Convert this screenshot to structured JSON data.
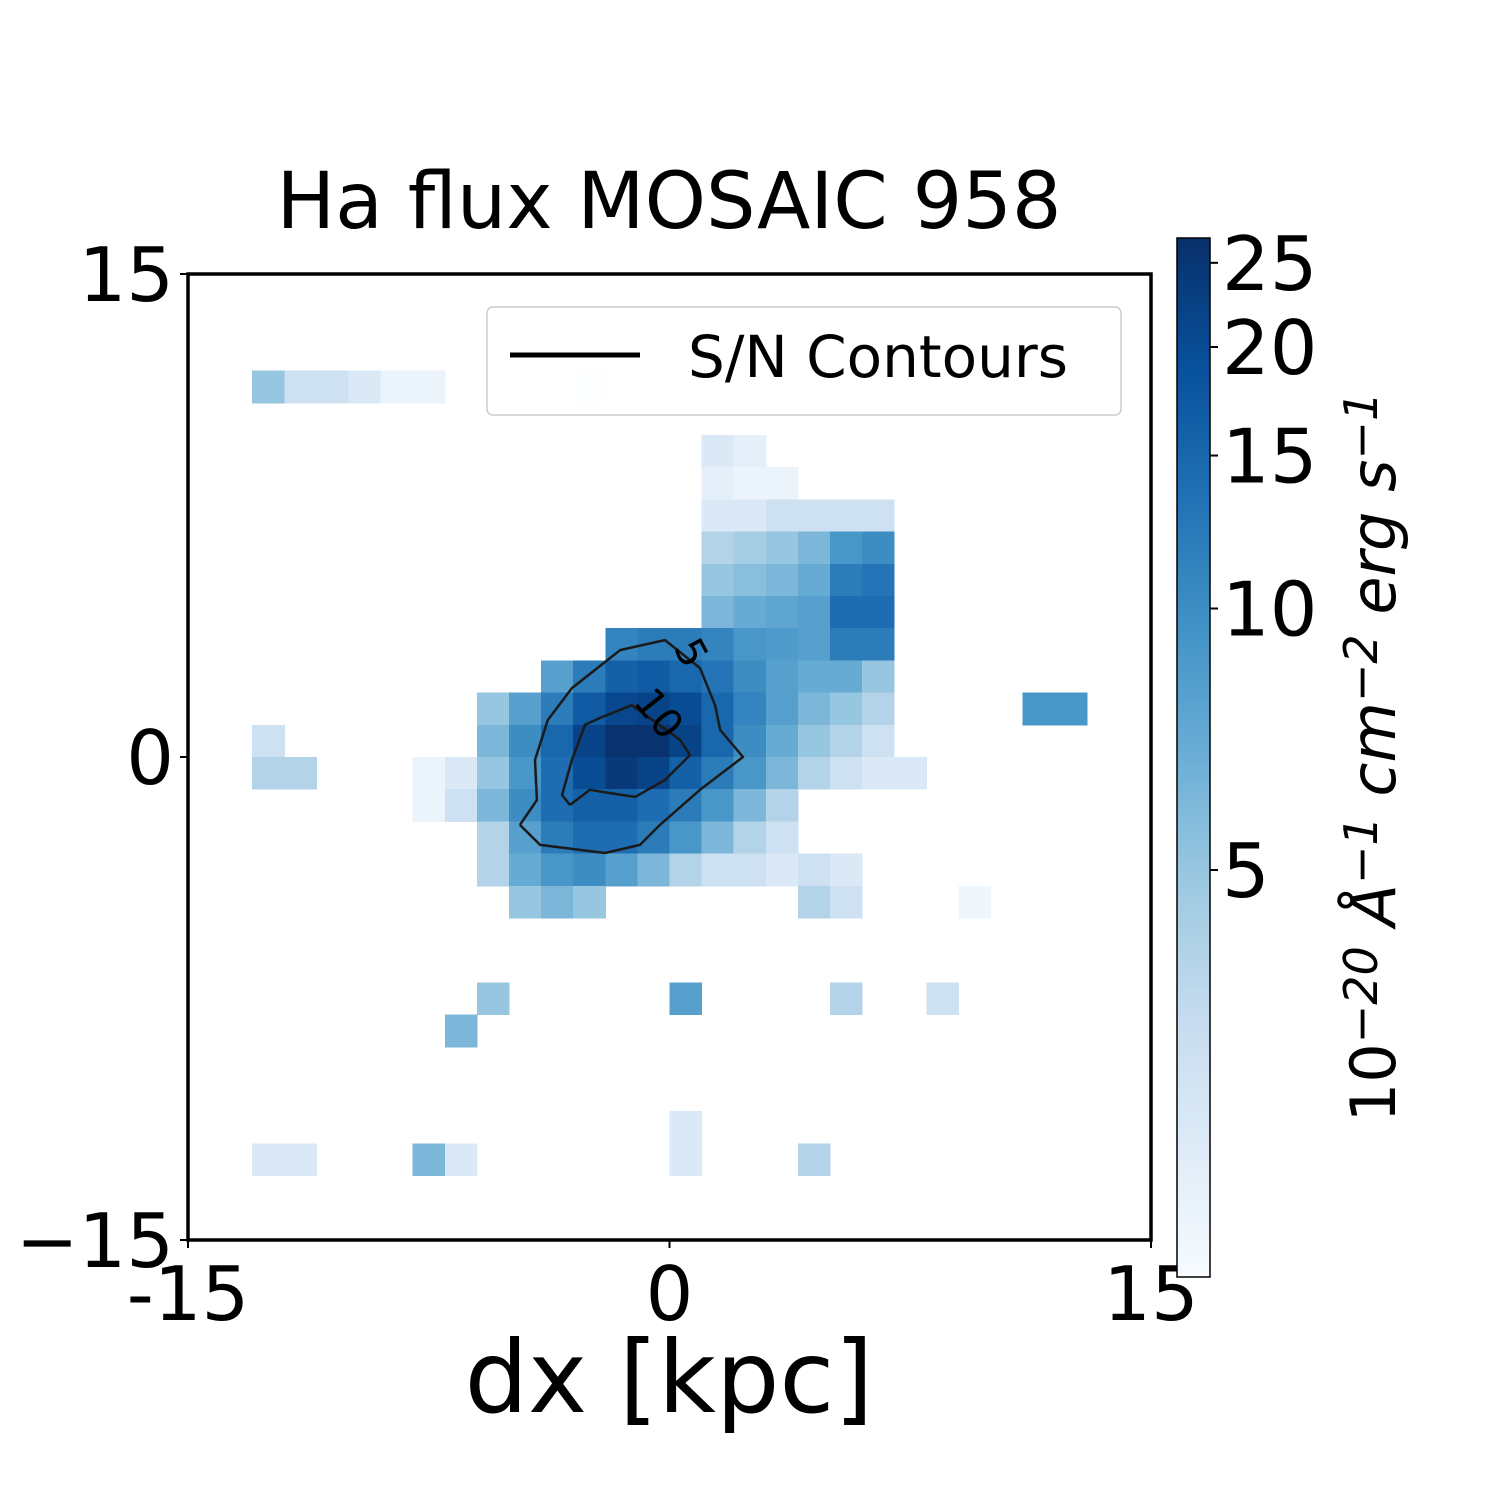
{
  "chart_data": {
    "type": "heatmap",
    "title": "Ha flux MOSAIC 958",
    "x_label": "dx [kpc]",
    "xlim": [
      -15,
      15
    ],
    "ylim": [
      -15,
      15
    ],
    "xticks": [
      -15,
      0,
      15
    ],
    "yticks": [
      {
        "value": -15,
        "label": "−15"
      },
      0,
      15
    ],
    "colormap": [
      "#f7fbff",
      "#deebf7",
      "#c6dbef",
      "#9ecae1",
      "#6baed6",
      "#4292c6",
      "#2171b5",
      "#08519c",
      "#08306b"
    ],
    "color_scale": "log",
    "clim": [
      1.7,
      26.7
    ],
    "cticks": [
      5,
      10,
      15,
      20,
      25
    ],
    "colorbar_label": [
      "10",
      "−20",
      " Å",
      "−1",
      " cm",
      "−2",
      " erg s",
      "−1"
    ],
    "rows": [
      {
        "y": 11.5,
        "x": [
          -12.5,
          -11.5,
          -10.5,
          -9.5,
          -8.5,
          -7.5,
          -2.5
        ],
        "values": [
          5,
          3,
          3,
          2.5,
          2,
          2,
          1.8
        ]
      },
      {
        "y": 9.5,
        "x": [
          1.5,
          2.5
        ],
        "values": [
          2.5,
          2.2
        ]
      },
      {
        "y": 8.5,
        "x": [
          1.5,
          2.5,
          3.5
        ],
        "values": [
          2.2,
          2,
          2
        ]
      },
      {
        "y": 7.5,
        "x": [
          1.5,
          2.5,
          3.5,
          4.5,
          5.5,
          6.5
        ],
        "values": [
          2.5,
          2.5,
          3,
          3,
          3,
          3
        ]
      },
      {
        "y": 6.5,
        "x": [
          1.5,
          2.5,
          3.5,
          4.5,
          5.5,
          6.5
        ],
        "values": [
          4,
          4.5,
          5,
          6,
          9,
          10
        ]
      },
      {
        "y": 5.5,
        "x": [
          1.5,
          2.5,
          3.5,
          4.5,
          5.5,
          6.5
        ],
        "values": [
          5,
          5.5,
          6,
          7,
          12,
          13
        ]
      },
      {
        "y": 4.5,
        "x": [
          1.5,
          2.5,
          3.5,
          4.5,
          5.5,
          6.5
        ],
        "values": [
          6,
          7,
          7.5,
          8,
          14,
          14
        ]
      },
      {
        "y": 3.5,
        "x": [
          -1.5,
          -0.5,
          0.5,
          1.5,
          2.5,
          3.5,
          4.5,
          5.5,
          6.5
        ],
        "values": [
          11,
          12,
          12,
          11,
          9,
          8.5,
          8,
          12,
          12
        ]
      },
      {
        "y": 2.5,
        "x": [
          -3.5,
          -2.5,
          -1.5,
          -0.5,
          0.5,
          1.5,
          2.5,
          3.5,
          4.5,
          5.5,
          6.5
        ],
        "values": [
          8,
          12,
          16,
          17,
          15,
          13,
          10,
          8,
          7,
          7,
          5
        ]
      },
      {
        "y": 1.5,
        "x": [
          -5.5,
          -4.5,
          -3.5,
          -2.5,
          -1.5,
          -0.5,
          0.5,
          1.5,
          2.5,
          3.5,
          4.5,
          5.5,
          6.5,
          11.5,
          12.5
        ],
        "values": [
          5,
          8,
          12,
          17,
          21,
          22,
          20,
          15,
          11,
          8,
          6,
          5,
          4,
          9,
          9
        ]
      },
      {
        "y": 0.5,
        "x": [
          -12.5,
          -5.5,
          -4.5,
          -3.5,
          -2.5,
          -1.5,
          -0.5,
          0.5,
          1.5,
          2.5,
          3.5,
          4.5,
          5.5,
          6.5
        ],
        "values": [
          3,
          6,
          10,
          15,
          22,
          26,
          26,
          22,
          15,
          10,
          7,
          5,
          4,
          3
        ]
      },
      {
        "y": -0.5,
        "x": [
          -12.5,
          -11.5,
          -7.5,
          -6.5,
          -5.5,
          -4.5,
          -3.5,
          -2.5,
          -1.5,
          -0.5,
          0.5,
          1.5,
          2.5,
          3.5,
          4.5,
          5.5,
          6.5,
          7.5
        ],
        "values": [
          4,
          4,
          2,
          2.5,
          5,
          9,
          14,
          20,
          24,
          22,
          16,
          12,
          9,
          6,
          4,
          3,
          2.5,
          2.5
        ]
      },
      {
        "y": -1.5,
        "x": [
          -7.5,
          -6.5,
          -5.5,
          -4.5,
          -3.5,
          -2.5,
          -1.5,
          -0.5,
          0.5,
          1.5,
          2.5,
          3.5
        ],
        "values": [
          2,
          3,
          6,
          10,
          14,
          16,
          16,
          14,
          12,
          9,
          6,
          4
        ]
      },
      {
        "y": -2.5,
        "x": [
          -5.5,
          -4.5,
          -3.5,
          -2.5,
          -1.5,
          -0.5,
          0.5,
          1.5,
          2.5,
          3.5
        ],
        "values": [
          4,
          8,
          12,
          14,
          14,
          12,
          9,
          6,
          4,
          3
        ]
      },
      {
        "y": -3.5,
        "x": [
          -5.5,
          -4.5,
          -3.5,
          -2.5,
          -1.5,
          -0.5,
          0.5,
          1.5,
          2.5,
          3.5,
          4.5,
          5.5
        ],
        "values": [
          4,
          7,
          9,
          10,
          8,
          6,
          4,
          3,
          3,
          2.5,
          3,
          2.5
        ]
      },
      {
        "y": -4.5,
        "x": [
          -4.5,
          -3.5,
          -2.5,
          4.5,
          5.5,
          9.5
        ],
        "values": [
          5,
          6,
          5,
          4,
          3,
          1.9
        ]
      },
      {
        "y": -7.5,
        "x": [
          -5.5,
          0.5,
          5.5,
          8.5
        ],
        "values": [
          5,
          8,
          4,
          3
        ]
      },
      {
        "y": -8.5,
        "x": [
          -6.5
        ],
        "values": [
          6
        ]
      },
      {
        "y": -11.5,
        "x": [
          0.5
        ],
        "values": [
          2.5
        ]
      },
      {
        "y": -12.5,
        "x": [
          -12.5,
          -11.5,
          -7.5,
          -6.5,
          0.5,
          4.5
        ],
        "values": [
          2.5,
          2.5,
          6,
          2.5,
          2.5,
          4
        ]
      }
    ],
    "contours": [
      {
        "level": 5,
        "color": "#1a1a1a",
        "x": [
          -4.66,
          -4.13,
          -4.19,
          -3.79,
          -3.04,
          -1.54,
          -0.14,
          0.95,
          1.42,
          1.58,
          2.29,
          0.95,
          -0.3,
          -0.92,
          -2.01,
          -4.03,
          -4.66
        ],
        "y": [
          -2.11,
          -1.34,
          -0.09,
          1.15,
          2.14,
          3.32,
          3.63,
          2.76,
          1.61,
          0.84,
          0.0,
          -1.02,
          -2.11,
          -2.73,
          -2.98,
          -2.73,
          -2.11
        ]
      },
      {
        "level": 10,
        "color": "#1a1a1a",
        "x": [
          -3.1,
          -3.35,
          -3.04,
          -2.63,
          -2.17,
          -1.17,
          0.33,
          0.64,
          -0.14,
          -1.07,
          -1.85,
          -2.48,
          -3.1
        ],
        "y": [
          -1.49,
          -1.18,
          -0.09,
          1.0,
          1.21,
          1.61,
          0.53,
          0.06,
          -0.71,
          -1.24,
          -1.12,
          -1.02,
          -1.49
        ]
      }
    ],
    "legend": {
      "label": "S/N Contours",
      "color": "#000000",
      "loc": "upper right"
    }
  }
}
